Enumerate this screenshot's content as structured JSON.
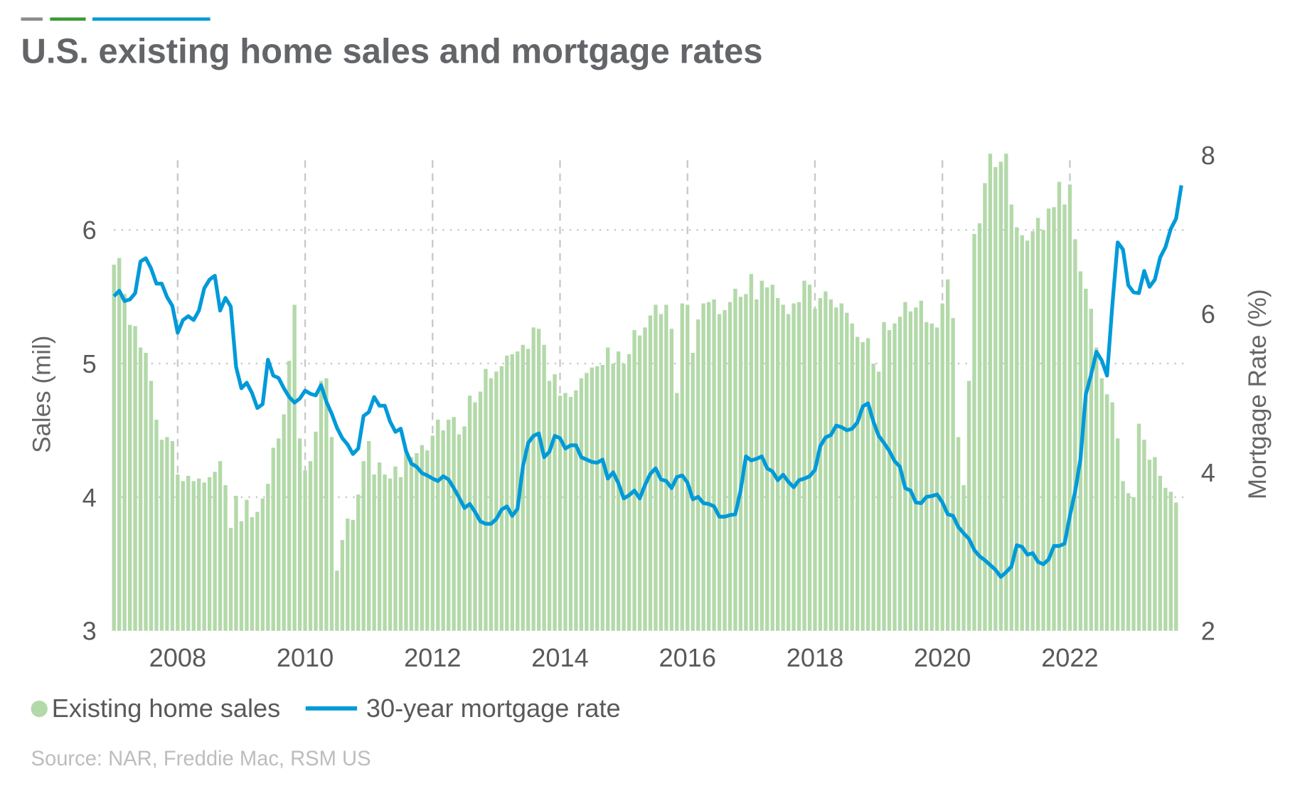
{
  "chart_data": {
    "type": "bar+line",
    "title": "U.S. existing home sales and mortgage rates",
    "source": "Source: NAR, Freddie Mac, RSM US",
    "ylabel_left": "Sales (mil)",
    "ylabel_right": "Mortgage Rate (%)",
    "ylim_left": [
      3,
      6.6
    ],
    "ylim_right": [
      2,
      8
    ],
    "yticks_left": [
      "3",
      "4",
      "5",
      "6"
    ],
    "yticks_right": [
      "2",
      "4",
      "6",
      "8"
    ],
    "xticks": [
      "2008",
      "2010",
      "2012",
      "2014",
      "2016",
      "2018",
      "2020",
      "2022"
    ],
    "x_start": "2007-01",
    "x_frequency": "monthly",
    "grid": "horizontal dotted at left-axis ticks, vertical dashed at labeled years",
    "legend_position": "bottom-left",
    "colors": {
      "sales": "#b3d9a9",
      "rate": "#009ad9",
      "title": "#636569",
      "source": "#bdbdbd",
      "accent_bars": [
        "#8c8c8c",
        "#3d9b35",
        "#009ad9"
      ]
    },
    "series": [
      {
        "name": "Existing home sales",
        "kind": "bar",
        "axis": "left",
        "values": [
          5.74,
          5.79,
          5.52,
          5.29,
          5.28,
          5.12,
          5.08,
          4.87,
          4.58,
          4.43,
          4.45,
          4.42,
          4.17,
          4.12,
          4.16,
          4.12,
          4.14,
          4.11,
          4.15,
          4.19,
          4.27,
          4.09,
          3.77,
          4.01,
          3.82,
          3.98,
          3.85,
          3.89,
          3.99,
          4.1,
          4.37,
          4.44,
          4.62,
          5.02,
          5.44,
          4.44,
          4.2,
          4.27,
          4.49,
          4.87,
          4.89,
          4.45,
          3.45,
          3.68,
          3.84,
          3.83,
          4.02,
          4.27,
          4.42,
          4.17,
          4.26,
          4.17,
          4.14,
          4.23,
          4.15,
          4.35,
          4.3,
          4.33,
          4.39,
          4.35,
          4.46,
          4.58,
          4.5,
          4.58,
          4.6,
          4.47,
          4.53,
          4.76,
          4.71,
          4.79,
          4.96,
          4.89,
          4.94,
          4.98,
          5.06,
          5.07,
          5.09,
          5.14,
          5.11,
          5.27,
          5.26,
          5.14,
          4.87,
          4.92,
          4.76,
          4.78,
          4.75,
          4.8,
          4.89,
          4.93,
          4.97,
          4.98,
          4.99,
          5.12,
          5.0,
          5.09,
          5.0,
          5.07,
          5.25,
          5.21,
          5.27,
          5.36,
          5.44,
          5.37,
          5.44,
          5.26,
          4.78,
          5.45,
          5.44,
          5.08,
          5.33,
          5.45,
          5.46,
          5.48,
          5.37,
          5.4,
          5.46,
          5.56,
          5.5,
          5.52,
          5.67,
          5.48,
          5.62,
          5.57,
          5.59,
          5.49,
          5.44,
          5.37,
          5.45,
          5.46,
          5.62,
          5.59,
          5.41,
          5.49,
          5.54,
          5.48,
          5.42,
          5.45,
          5.38,
          5.3,
          5.2,
          5.16,
          5.19,
          5.0,
          4.94,
          5.31,
          5.25,
          5.3,
          5.35,
          5.46,
          5.39,
          5.42,
          5.47,
          5.31,
          5.3,
          5.27,
          5.45,
          5.63,
          5.34,
          4.45,
          4.09,
          4.87,
          5.97,
          6.05,
          6.35,
          6.57,
          6.47,
          6.51,
          6.57,
          6.19,
          6.02,
          5.96,
          5.92,
          5.99,
          6.09,
          6.0,
          6.16,
          6.17,
          6.36,
          6.19,
          6.34,
          5.93,
          5.69,
          5.56,
          5.41,
          5.12,
          4.89,
          4.77,
          4.71,
          4.44,
          4.12,
          4.03,
          4.0,
          4.55,
          4.43,
          4.28,
          4.3,
          4.16,
          4.07,
          4.04,
          3.96
        ]
      },
      {
        "name": "30-year mortgage rate",
        "kind": "line",
        "axis": "right",
        "values": [
          6.22,
          6.29,
          6.16,
          6.18,
          6.26,
          6.66,
          6.7,
          6.57,
          6.38,
          6.38,
          6.21,
          6.1,
          5.76,
          5.92,
          5.97,
          5.92,
          6.04,
          6.32,
          6.43,
          6.48,
          6.04,
          6.2,
          6.09,
          5.33,
          5.06,
          5.13,
          5.0,
          4.81,
          4.86,
          5.42,
          5.22,
          5.19,
          5.06,
          4.95,
          4.88,
          4.93,
          5.03,
          4.99,
          4.97,
          5.1,
          4.89,
          4.74,
          4.56,
          4.43,
          4.35,
          4.23,
          4.3,
          4.71,
          4.76,
          4.95,
          4.84,
          4.84,
          4.64,
          4.51,
          4.55,
          4.27,
          4.11,
          4.07,
          3.99,
          3.96,
          3.92,
          3.89,
          3.95,
          3.91,
          3.8,
          3.68,
          3.55,
          3.6,
          3.5,
          3.38,
          3.35,
          3.35,
          3.41,
          3.53,
          3.57,
          3.45,
          3.54,
          4.07,
          4.37,
          4.46,
          4.49,
          4.19,
          4.26,
          4.46,
          4.43,
          4.3,
          4.34,
          4.34,
          4.19,
          4.16,
          4.13,
          4.12,
          4.16,
          3.92,
          4.0,
          3.86,
          3.67,
          3.71,
          3.77,
          3.67,
          3.84,
          3.98,
          4.05,
          3.91,
          3.89,
          3.8,
          3.94,
          3.96,
          3.87,
          3.66,
          3.69,
          3.61,
          3.6,
          3.57,
          3.44,
          3.44,
          3.46,
          3.47,
          3.77,
          4.2,
          4.15,
          4.17,
          4.2,
          4.05,
          4.01,
          3.9,
          3.97,
          3.88,
          3.81,
          3.9,
          3.92,
          3.95,
          4.03,
          4.33,
          4.44,
          4.47,
          4.59,
          4.57,
          4.53,
          4.55,
          4.63,
          4.83,
          4.87,
          4.64,
          4.46,
          4.37,
          4.27,
          4.14,
          4.07,
          3.8,
          3.77,
          3.62,
          3.61,
          3.69,
          3.7,
          3.72,
          3.62,
          3.47,
          3.45,
          3.31,
          3.23,
          3.16,
          3.02,
          2.94,
          2.89,
          2.83,
          2.77,
          2.68,
          2.74,
          2.81,
          3.08,
          3.06,
          2.96,
          2.98,
          2.87,
          2.84,
          2.9,
          3.07,
          3.07,
          3.1,
          3.45,
          3.76,
          4.17,
          4.98,
          5.23,
          5.52,
          5.41,
          5.22,
          6.11,
          6.9,
          6.81,
          6.36,
          6.27,
          6.26,
          6.54,
          6.34,
          6.43,
          6.71,
          6.84,
          7.07,
          7.2,
          7.62
        ]
      }
    ]
  }
}
